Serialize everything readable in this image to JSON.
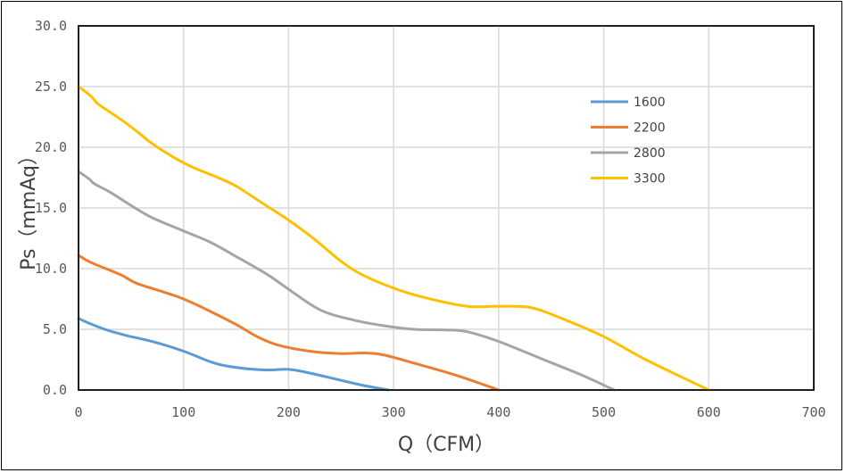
{
  "chart_data": {
    "type": "line",
    "xlabel": "Q（CFM）",
    "ylabel": "Ps（mmAq）",
    "xlim": [
      0,
      700
    ],
    "ylim": [
      0,
      30
    ],
    "x_ticks": [
      "0",
      "100",
      "200",
      "300",
      "400",
      "500",
      "600",
      "700"
    ],
    "y_ticks": [
      "0.0",
      "5.0",
      "10.0",
      "15.0",
      "20.0",
      "25.0",
      "30.0"
    ],
    "grid": true,
    "legend_position": "right",
    "series": [
      {
        "name": "1600",
        "color": "#5B9BD5",
        "x": [
          0,
          10,
          25,
          45,
          70,
          100,
          130,
          155,
          180,
          200,
          220,
          245,
          270,
          295
        ],
        "y": [
          5.9,
          5.5,
          5.0,
          4.5,
          4.0,
          3.2,
          2.2,
          1.8,
          1.65,
          1.7,
          1.4,
          0.9,
          0.4,
          0.0
        ]
      },
      {
        "name": "2200",
        "color": "#ED7D31",
        "x": [
          0,
          12,
          40,
          55,
          80,
          100,
          125,
          150,
          170,
          190,
          220,
          250,
          270,
          290,
          320,
          360,
          400
        ],
        "y": [
          11.1,
          10.5,
          9.5,
          8.8,
          8.1,
          7.5,
          6.5,
          5.4,
          4.4,
          3.7,
          3.2,
          3.0,
          3.05,
          2.9,
          2.2,
          1.2,
          0.0
        ]
      },
      {
        "name": "2800",
        "color": "#A5A5A5",
        "x": [
          0,
          10,
          15,
          30,
          50,
          70,
          100,
          125,
          150,
          180,
          200,
          230,
          260,
          290,
          320,
          350,
          370,
          400,
          440,
          480,
          510
        ],
        "y": [
          18.0,
          17.4,
          17.0,
          16.3,
          15.2,
          14.2,
          13.1,
          12.2,
          11.0,
          9.5,
          8.3,
          6.6,
          5.8,
          5.3,
          5.0,
          4.95,
          4.8,
          4.0,
          2.6,
          1.2,
          0.0
        ]
      },
      {
        "name": "3300",
        "color": "#FFC000",
        "x": [
          0,
          12,
          18,
          30,
          45,
          60,
          70,
          90,
          110,
          130,
          150,
          175,
          200,
          225,
          250,
          270,
          300,
          330,
          370,
          400,
          430,
          460,
          500,
          540,
          600
        ],
        "y": [
          25.0,
          24.2,
          23.6,
          22.9,
          22.0,
          21.0,
          20.3,
          19.2,
          18.3,
          17.6,
          16.8,
          15.4,
          14.0,
          12.4,
          10.6,
          9.5,
          8.4,
          7.6,
          6.9,
          6.9,
          6.8,
          5.9,
          4.4,
          2.5,
          0.0
        ]
      }
    ]
  }
}
